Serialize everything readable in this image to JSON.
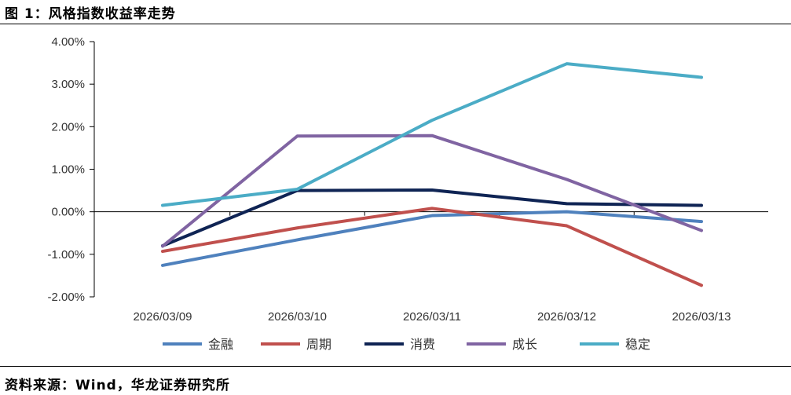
{
  "title": "图 1：风格指数收益率走势",
  "source": "资料来源：Wind，华龙证券研究所",
  "chart_data": {
    "type": "line",
    "categories": [
      "2026/03/09",
      "2026/03/10",
      "2026/03/11",
      "2026/03/12",
      "2026/03/13"
    ],
    "ylim": [
      -0.02,
      0.04
    ],
    "yticks": [
      0.04,
      0.03,
      0.02,
      0.01,
      0.0,
      -0.01,
      -0.02
    ],
    "ytick_labels": [
      "4.00%",
      "3.00%",
      "2.00%",
      "1.00%",
      "0.00%",
      "-1.00%",
      "-2.00%"
    ],
    "grid": false,
    "legend_position": "bottom",
    "series": [
      {
        "name": "金融",
        "color": "#4f81bd",
        "values": [
          -0.0126,
          -0.0066,
          -0.0009,
          0.0,
          -0.0023
        ]
      },
      {
        "name": "周期",
        "color": "#c0504d",
        "values": [
          -0.0093,
          -0.0038,
          0.0008,
          -0.0033,
          -0.0173
        ]
      },
      {
        "name": "消费",
        "color": "#0f2454",
        "values": [
          -0.008,
          0.005,
          0.0051,
          0.0019,
          0.0015
        ]
      },
      {
        "name": "成长",
        "color": "#8064a2",
        "values": [
          -0.0081,
          0.0178,
          0.0179,
          0.0076,
          -0.0044
        ]
      },
      {
        "name": "稳定",
        "color": "#4bacc6",
        "values": [
          0.0015,
          0.0053,
          0.0215,
          0.0348,
          0.0316
        ]
      }
    ]
  }
}
